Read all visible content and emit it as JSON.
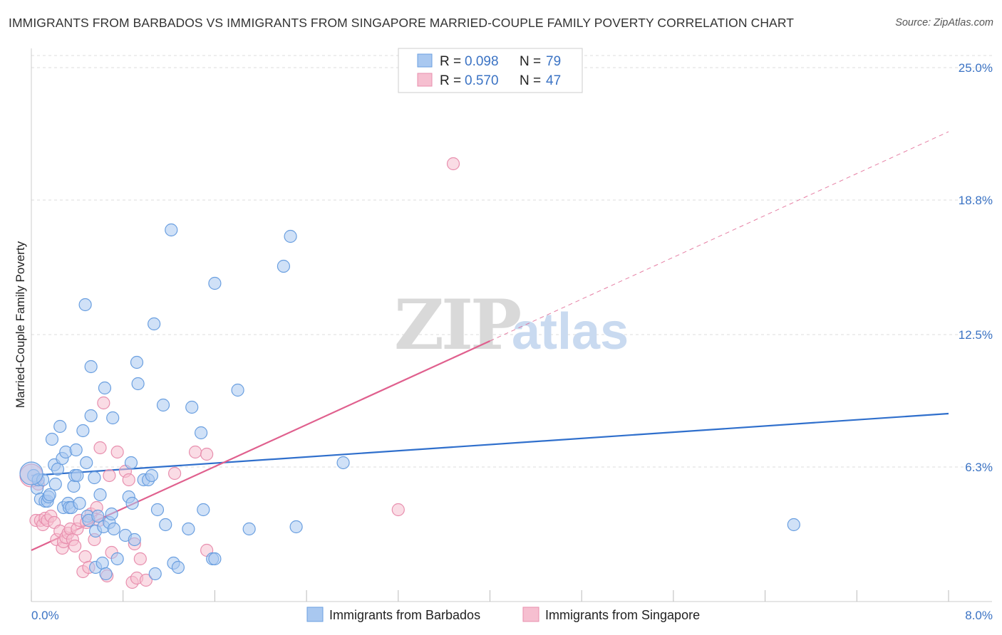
{
  "title": "IMMIGRANTS FROM BARBADOS VS IMMIGRANTS FROM SINGAPORE MARRIED-COUPLE FAMILY POVERTY CORRELATION CHART",
  "source": "Source: ZipAtlas.com",
  "watermark": {
    "zip": "ZIP",
    "atlas": "atlas"
  },
  "colors": {
    "barbados_fill": "#a9c8f0",
    "barbados_stroke": "#6a9fe0",
    "barbados_line": "#2f6fcc",
    "singapore_fill": "#f6bfd0",
    "singapore_stroke": "#e88fae",
    "singapore_line": "#e0608e",
    "tick_text": "#3b73c4",
    "grid": "#dddddd"
  },
  "legend": {
    "rows": [
      {
        "r_label": "R = ",
        "r_value": "0.098",
        "n_label": "N = ",
        "n_value": "79"
      },
      {
        "r_label": "R = ",
        "r_value": "0.570",
        "n_label": "N = ",
        "n_value": "47"
      }
    ]
  },
  "chart_data": {
    "type": "scatter",
    "title": "IMMIGRANTS FROM BARBADOS VS IMMIGRANTS FROM SINGAPORE MARRIED-COUPLE FAMILY POVERTY CORRELATION CHART",
    "xlabel": "",
    "ylabel": "Married-Couple Family Poverty",
    "xlim": [
      0,
      8
    ],
    "ylim": [
      0,
      25.9
    ],
    "x_tick_labels": [
      "0.0%",
      "8.0%"
    ],
    "y_ticks": [
      6.3,
      12.5,
      18.8,
      25.0
    ],
    "y_tick_labels": [
      "6.3%",
      "12.5%",
      "18.8%",
      "25.0%"
    ],
    "legend_position": "top-center",
    "series": [
      {
        "name": "Immigrants from Barbados",
        "R": 0.098,
        "N": 79,
        "trend": {
          "x": [
            0,
            8
          ],
          "y": [
            5.9,
            8.8
          ],
          "style": "solid"
        },
        "points": [
          [
            0.02,
            5.9
          ],
          [
            0.05,
            5.3
          ],
          [
            0.06,
            5.7
          ],
          [
            0.08,
            4.8
          ],
          [
            0.1,
            5.7
          ],
          [
            0.12,
            4.7
          ],
          [
            0.14,
            4.7
          ],
          [
            0.15,
            4.9
          ],
          [
            0.16,
            5.0
          ],
          [
            0.18,
            7.6
          ],
          [
            0.2,
            6.4
          ],
          [
            0.21,
            5.5
          ],
          [
            0.23,
            6.2
          ],
          [
            0.25,
            8.2
          ],
          [
            0.27,
            6.7
          ],
          [
            0.28,
            4.4
          ],
          [
            0.3,
            7.0
          ],
          [
            0.32,
            4.6
          ],
          [
            0.33,
            4.4
          ],
          [
            0.35,
            4.4
          ],
          [
            0.37,
            5.4
          ],
          [
            0.38,
            5.9
          ],
          [
            0.39,
            7.1
          ],
          [
            0.4,
            5.9
          ],
          [
            0.42,
            4.6
          ],
          [
            0.45,
            8.0
          ],
          [
            0.47,
            13.9
          ],
          [
            0.48,
            6.5
          ],
          [
            0.49,
            4.0
          ],
          [
            0.5,
            3.8
          ],
          [
            0.52,
            8.7
          ],
          [
            0.52,
            11.0
          ],
          [
            0.55,
            5.8
          ],
          [
            0.56,
            1.6
          ],
          [
            0.56,
            3.3
          ],
          [
            0.58,
            4.0
          ],
          [
            0.6,
            5.0
          ],
          [
            0.62,
            1.8
          ],
          [
            0.63,
            3.5
          ],
          [
            0.64,
            10.0
          ],
          [
            0.65,
            1.3
          ],
          [
            0.68,
            3.7
          ],
          [
            0.7,
            4.1
          ],
          [
            0.71,
            8.6
          ],
          [
            0.72,
            3.4
          ],
          [
            0.75,
            2.0
          ],
          [
            0.82,
            3.1
          ],
          [
            0.85,
            4.9
          ],
          [
            0.87,
            6.5
          ],
          [
            0.88,
            4.6
          ],
          [
            0.9,
            2.9
          ],
          [
            0.92,
            11.2
          ],
          [
            0.93,
            10.2
          ],
          [
            0.98,
            5.7
          ],
          [
            1.02,
            5.7
          ],
          [
            1.05,
            5.9
          ],
          [
            1.07,
            13.0
          ],
          [
            1.08,
            1.3
          ],
          [
            1.1,
            4.3
          ],
          [
            1.15,
            9.2
          ],
          [
            1.17,
            3.6
          ],
          [
            1.22,
            17.4
          ],
          [
            1.24,
            1.8
          ],
          [
            1.28,
            1.6
          ],
          [
            1.37,
            3.4
          ],
          [
            1.4,
            9.1
          ],
          [
            1.48,
            7.9
          ],
          [
            1.5,
            4.3
          ],
          [
            1.58,
            2.0
          ],
          [
            1.6,
            2.0
          ],
          [
            1.6,
            14.9
          ],
          [
            1.8,
            9.9
          ],
          [
            1.9,
            3.4
          ],
          [
            2.2,
            15.7
          ],
          [
            2.26,
            17.1
          ],
          [
            2.31,
            3.5
          ],
          [
            2.72,
            6.5
          ],
          [
            6.65,
            3.6
          ],
          [
            0.0,
            6.0
          ]
        ]
      },
      {
        "name": "Immigrants from Singapore",
        "R": 0.57,
        "N": 47,
        "trend": {
          "x": [
            0,
            4
          ],
          "y": [
            2.4,
            12.2
          ],
          "extended_x": [
            4,
            8
          ],
          "extended_y": [
            12.2,
            22.0
          ],
          "style": "solid-then-dashed"
        },
        "points": [
          [
            0.04,
            3.8
          ],
          [
            0.06,
            5.5
          ],
          [
            0.08,
            3.8
          ],
          [
            0.1,
            3.6
          ],
          [
            0.12,
            3.9
          ],
          [
            0.14,
            3.8
          ],
          [
            0.17,
            4.0
          ],
          [
            0.2,
            3.7
          ],
          [
            0.22,
            2.9
          ],
          [
            0.25,
            3.3
          ],
          [
            0.27,
            2.5
          ],
          [
            0.28,
            2.8
          ],
          [
            0.3,
            3.0
          ],
          [
            0.32,
            3.2
          ],
          [
            0.34,
            3.4
          ],
          [
            0.36,
            2.9
          ],
          [
            0.38,
            2.6
          ],
          [
            0.4,
            3.4
          ],
          [
            0.42,
            3.8
          ],
          [
            0.45,
            1.4
          ],
          [
            0.47,
            2.1
          ],
          [
            0.48,
            3.7
          ],
          [
            0.5,
            1.6
          ],
          [
            0.52,
            4.1
          ],
          [
            0.55,
            2.9
          ],
          [
            0.57,
            4.4
          ],
          [
            0.59,
            3.8
          ],
          [
            0.6,
            7.2
          ],
          [
            0.63,
            9.3
          ],
          [
            0.66,
            1.2
          ],
          [
            0.68,
            5.9
          ],
          [
            0.7,
            2.3
          ],
          [
            0.75,
            7.0
          ],
          [
            0.82,
            6.1
          ],
          [
            0.85,
            5.7
          ],
          [
            0.88,
            0.9
          ],
          [
            0.9,
            2.7
          ],
          [
            0.92,
            1.1
          ],
          [
            0.95,
            2.0
          ],
          [
            1.0,
            1.0
          ],
          [
            1.25,
            6.0
          ],
          [
            1.43,
            7.0
          ],
          [
            1.53,
            2.4
          ],
          [
            1.53,
            6.9
          ],
          [
            3.2,
            4.3
          ],
          [
            3.68,
            20.5
          ],
          [
            0.0,
            5.9
          ]
        ]
      }
    ]
  },
  "bottom_legend": {
    "barbados": "Immigrants from Barbados",
    "singapore": "Immigrants from Singapore"
  }
}
